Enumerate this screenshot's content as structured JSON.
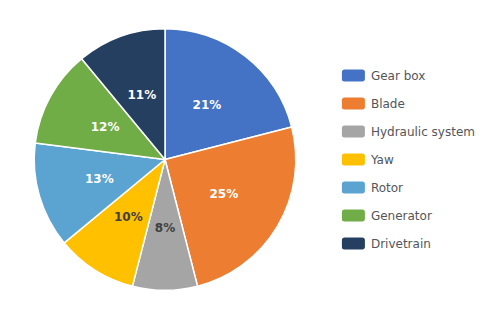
{
  "chart_data": {
    "type": "pie",
    "categories": [
      "Gear box",
      "Blade",
      "Hydraulic system",
      "Yaw",
      "Rotor",
      "Generator",
      "Drivetrain"
    ],
    "values": [
      21,
      25,
      8,
      10,
      13,
      12,
      11
    ],
    "value_labels": [
      "21%",
      "25%",
      "8%",
      "10%",
      "13%",
      "12%",
      "11%"
    ],
    "colors": [
      "#4472C4",
      "#ED7D31",
      "#A5A5A5",
      "#FFC000",
      "#5BA3D0",
      "#70AD47",
      "#243F60"
    ],
    "data_labels": true,
    "legend": "right"
  }
}
